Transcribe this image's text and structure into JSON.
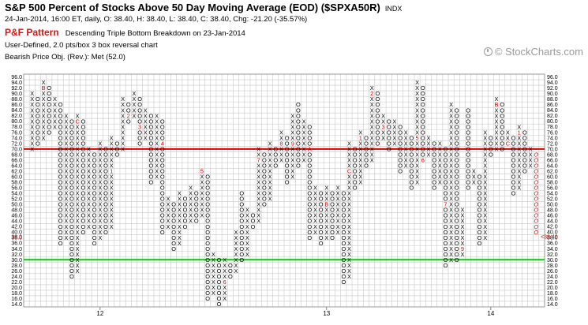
{
  "header": {
    "title": "S&P 500 Percent of Stocks Above 50 Day Moving Average (EOD) ($SPXA50R)",
    "symbol_exchange": "INDX",
    "quote_line": "24-Jan-2014, 16:00 ET, daily, O: 38.40, H: 38.40, L: 38.40, C: 38.40, Chg: -21.20 (-35.57%)",
    "pf_label": "P&F Pattern",
    "pattern_text": "Descending Triple Bottom Breakdown on 23-Jan-2014",
    "settings_line": "User-Defined, 2.0 pts/box 3 box reversal chart",
    "objective_line": "Bearish Price Obj. (Rev.): Met (52.0)"
  },
  "watermark": {
    "text": "© StockCharts.com",
    "icon": "stockcharts-logo-icon"
  },
  "colors": {
    "x_mark": "#000000",
    "o_mark": "#000000",
    "month_mark": "#cc0000",
    "current_column": "#cc0000",
    "overbought_line": "#e00000",
    "oversold_line": "#00cc00",
    "grid": "#c8c8c8",
    "last_price_label": "#cc0000"
  },
  "chart_data": {
    "type": "point-and-figure",
    "box_size": 2.0,
    "reversal": 3,
    "y_range": [
      14,
      96
    ],
    "y_ticks": [
      "96.0",
      "94.0",
      "92.0",
      "90.0",
      "88.0",
      "86.0",
      "84.0",
      "82.0",
      "80.0",
      "78.0",
      "76.0",
      "74.0",
      "72.0",
      "70.0",
      "68.0",
      "66.0",
      "64.0",
      "62.0",
      "60.0",
      "58.0",
      "56.0",
      "54.0",
      "52.0",
      "50.0",
      "48.0",
      "46.0",
      "44.0",
      "42.0",
      "40.0",
      "38.0",
      "36.0",
      "34.0",
      "32.0",
      "30.0",
      "28.0",
      "26.0",
      "24.0",
      "22.0",
      "20.0",
      "18.0",
      "16.0",
      "14.0"
    ],
    "x_labels": [
      {
        "label": "12",
        "column": 12
      },
      {
        "label": "13",
        "column": 52
      },
      {
        "label": "14",
        "column": 81
      }
    ],
    "horizontal_lines": [
      {
        "value": 70,
        "color": "#e00000"
      },
      {
        "value": 30,
        "color": "#00cc00"
      }
    ],
    "last_price_left": "38.0",
    "last_price_right": "<38.40",
    "columns": [
      {
        "t": "X",
        "lo": 70,
        "hi": 90
      },
      {
        "t": "O",
        "lo": 72,
        "hi": 88
      },
      {
        "t": "X",
        "lo": 74,
        "hi": 94,
        "m": {
          "92": "B"
        }
      },
      {
        "t": "O",
        "lo": 76,
        "hi": 92
      },
      {
        "t": "X",
        "lo": 78,
        "hi": 88
      },
      {
        "t": "O",
        "lo": 36,
        "hi": 86
      },
      {
        "t": "X",
        "lo": 38,
        "hi": 82
      },
      {
        "t": "O",
        "lo": 24,
        "hi": 80
      },
      {
        "t": "X",
        "lo": 26,
        "hi": 82,
        "m": {
          "80": "C"
        }
      },
      {
        "t": "O",
        "lo": 40,
        "hi": 80
      },
      {
        "t": "X",
        "lo": 42,
        "hi": 70
      },
      {
        "t": "O",
        "lo": 36,
        "hi": 68
      },
      {
        "t": "X",
        "lo": 38,
        "hi": 72
      },
      {
        "t": "O",
        "lo": 40,
        "hi": 70
      },
      {
        "t": "X",
        "lo": 42,
        "hi": 74,
        "m": {
          "62": "1"
        }
      },
      {
        "t": "O",
        "lo": 68,
        "hi": 72
      },
      {
        "t": "X",
        "lo": 70,
        "hi": 88
      },
      {
        "t": "O",
        "lo": 80,
        "hi": 86,
        "m": {
          "82": "2"
        }
      },
      {
        "t": "X",
        "lo": 82,
        "hi": 90
      },
      {
        "t": "O",
        "lo": 72,
        "hi": 88,
        "m": {
          "78": "3"
        }
      },
      {
        "t": "X",
        "lo": 74,
        "hi": 84
      },
      {
        "t": "O",
        "lo": 58,
        "hi": 82
      },
      {
        "t": "X",
        "lo": 60,
        "hi": 82
      },
      {
        "t": "O",
        "lo": 40,
        "hi": 80,
        "m": {
          "72": "4"
        }
      },
      {
        "t": "X",
        "lo": 42,
        "hi": 52
      },
      {
        "t": "O",
        "lo": 34,
        "hi": 50
      },
      {
        "t": "X",
        "lo": 36,
        "hi": 54
      },
      {
        "t": "O",
        "lo": 42,
        "hi": 52
      },
      {
        "t": "X",
        "lo": 44,
        "hi": 56
      },
      {
        "t": "O",
        "lo": 44,
        "hi": 54
      },
      {
        "t": "X",
        "lo": 46,
        "hi": 62,
        "m": {
          "62": "5"
        }
      },
      {
        "t": "O",
        "lo": 16,
        "hi": 60
      },
      {
        "t": "X",
        "lo": 18,
        "hi": 32
      },
      {
        "t": "O",
        "lo": 14,
        "hi": 30
      },
      {
        "t": "X",
        "lo": 16,
        "hi": 30,
        "m": {
          "22": "6"
        }
      },
      {
        "t": "O",
        "lo": 24,
        "hi": 28
      },
      {
        "t": "X",
        "lo": 26,
        "hi": 40
      },
      {
        "t": "O",
        "lo": 30,
        "hi": 54
      },
      {
        "t": "X",
        "lo": 32,
        "hi": 48
      },
      {
        "t": "O",
        "lo": 42,
        "hi": 46
      },
      {
        "t": "X",
        "lo": 44,
        "hi": 70,
        "m": {
          "66": "7"
        }
      },
      {
        "t": "O",
        "lo": 50,
        "hi": 68
      },
      {
        "t": "X",
        "lo": 52,
        "hi": 72
      },
      {
        "t": "O",
        "lo": 64,
        "hi": 70
      },
      {
        "t": "X",
        "lo": 66,
        "hi": 76,
        "m": {
          "72": "8"
        }
      },
      {
        "t": "O",
        "lo": 58,
        "hi": 74
      },
      {
        "t": "X",
        "lo": 60,
        "hi": 82,
        "m": {
          "72": "9"
        }
      },
      {
        "t": "O",
        "lo": 64,
        "hi": 86
      },
      {
        "t": "X",
        "lo": 66,
        "hi": 80
      },
      {
        "t": "O",
        "lo": 38,
        "hi": 78,
        "m": {
          "70": "A"
        }
      },
      {
        "t": "X",
        "lo": 40,
        "hi": 56
      },
      {
        "t": "O",
        "lo": 36,
        "hi": 54
      },
      {
        "t": "X",
        "lo": 38,
        "hi": 56,
        "m": {
          "50": "B"
        }
      },
      {
        "t": "O",
        "lo": 38,
        "hi": 54
      },
      {
        "t": "X",
        "lo": 40,
        "hi": 56
      },
      {
        "t": "O",
        "lo": 22,
        "hi": 54
      },
      {
        "t": "X",
        "lo": 24,
        "hi": 72,
        "m": {
          "62": "C"
        }
      },
      {
        "t": "O",
        "lo": 56,
        "hi": 70
      },
      {
        "t": "X",
        "lo": 58,
        "hi": 76,
        "m": {
          "74": "1"
        }
      },
      {
        "t": "O",
        "lo": 64,
        "hi": 74
      },
      {
        "t": "X",
        "lo": 66,
        "hi": 92,
        "m": {
          "90": "2"
        }
      },
      {
        "t": "O",
        "lo": 72,
        "hi": 90
      },
      {
        "t": "X",
        "lo": 74,
        "hi": 82,
        "m": {
          "78": "3"
        }
      },
      {
        "t": "O",
        "lo": 70,
        "hi": 80
      },
      {
        "t": "X",
        "lo": 72,
        "hi": 80
      },
      {
        "t": "O",
        "lo": 62,
        "hi": 78
      },
      {
        "t": "X",
        "lo": 64,
        "hi": 76
      },
      {
        "t": "O",
        "lo": 56,
        "hi": 74
      },
      {
        "t": "X",
        "lo": 58,
        "hi": 94,
        "m": {
          "74": "5"
        }
      },
      {
        "t": "O",
        "lo": 66,
        "hi": 92,
        "m": {
          "66": "6"
        }
      },
      {
        "t": "X",
        "lo": 68,
        "hi": 74
      },
      {
        "t": "O",
        "lo": 56,
        "hi": 72
      },
      {
        "t": "X",
        "lo": 58,
        "hi": 72
      },
      {
        "t": "O",
        "lo": 28,
        "hi": 70,
        "m": {
          "50": "7"
        }
      },
      {
        "t": "X",
        "lo": 30,
        "hi": 86
      },
      {
        "t": "O",
        "lo": 30,
        "hi": 84
      },
      {
        "t": "X",
        "lo": 32,
        "hi": 48,
        "m": {
          "34": "9"
        }
      },
      {
        "t": "O",
        "lo": 56,
        "hi": 84
      },
      {
        "t": "X",
        "lo": 58,
        "hi": 62
      },
      {
        "t": "O",
        "lo": 36,
        "hi": 60
      },
      {
        "t": "X",
        "lo": 38,
        "hi": 76
      },
      {
        "t": "O",
        "lo": 68,
        "hi": 74
      },
      {
        "t": "X",
        "lo": 70,
        "hi": 88,
        "m": {
          "86": "B"
        }
      },
      {
        "t": "O",
        "lo": 70,
        "hi": 86
      },
      {
        "t": "X",
        "lo": 72,
        "hi": 76,
        "m": {
          "72": "C"
        }
      },
      {
        "t": "O",
        "lo": 54,
        "hi": 74
      },
      {
        "t": "X",
        "lo": 56,
        "hi": 78,
        "m": {
          "76": "1"
        }
      },
      {
        "t": "O",
        "lo": 62,
        "hi": 76
      },
      {
        "t": "X",
        "lo": 64,
        "hi": 70
      },
      {
        "t": "O",
        "lo": 40,
        "hi": 68,
        "cur": true
      }
    ]
  }
}
